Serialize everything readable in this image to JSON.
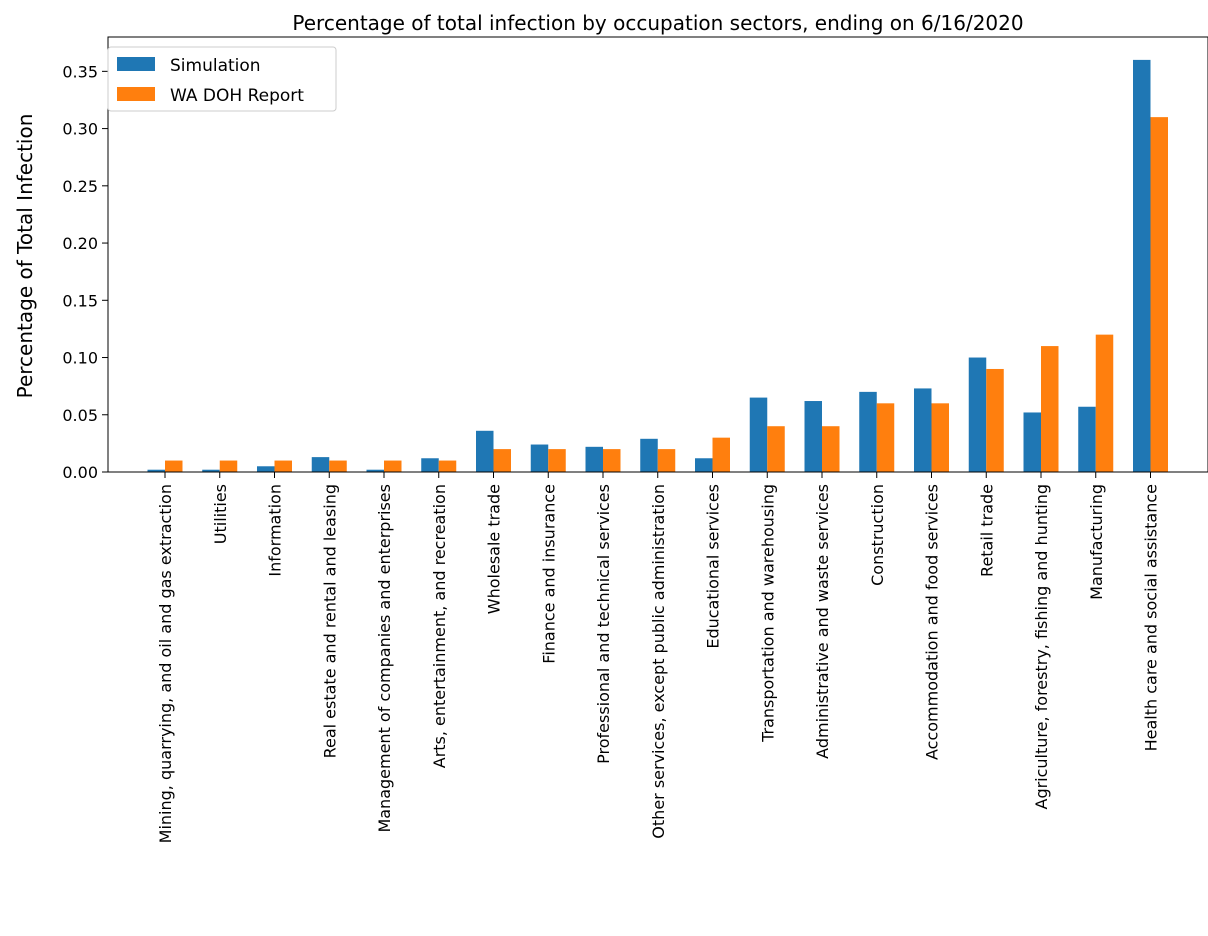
{
  "chart_data": {
    "type": "bar",
    "title": "Percentage of total infection by occupation sectors, ending on 6/16/2020",
    "xlabel": "",
    "ylabel": "Percentage of Total Infection",
    "ylim": [
      0,
      0.38
    ],
    "yticks": [
      "0.00",
      "0.05",
      "0.10",
      "0.15",
      "0.20",
      "0.25",
      "0.30",
      "0.35"
    ],
    "grid": false,
    "legend_position": "top-left",
    "categories": [
      "Mining, quarrying, and oil and gas extraction",
      "Utilities",
      "Information",
      "Real estate and rental and leasing",
      "Management of companies and enterprises",
      "Arts, entertainment, and recreation",
      "Wholesale trade",
      "Finance and insurance",
      "Professional and technical services",
      "Other services, except public administration",
      "Educational services",
      "Transportation and warehousing",
      "Administrative and waste services",
      "Construction",
      "Accommodation and food services",
      "Retail trade",
      "Agriculture, forestry, fishing and hunting",
      "Manufacturing",
      "Health care and social assistance"
    ],
    "series": [
      {
        "name": "Simulation",
        "color": "#1f77b4",
        "values": [
          0.002,
          0.002,
          0.005,
          0.013,
          0.002,
          0.012,
          0.036,
          0.024,
          0.022,
          0.029,
          0.012,
          0.065,
          0.062,
          0.07,
          0.073,
          0.1,
          0.052,
          0.057,
          0.36
        ]
      },
      {
        "name": "WA DOH Report",
        "color": "#ff7f0e",
        "values": [
          0.01,
          0.01,
          0.01,
          0.01,
          0.01,
          0.01,
          0.02,
          0.02,
          0.02,
          0.02,
          0.03,
          0.04,
          0.04,
          0.06,
          0.06,
          0.09,
          0.11,
          0.12,
          0.31
        ]
      }
    ]
  }
}
